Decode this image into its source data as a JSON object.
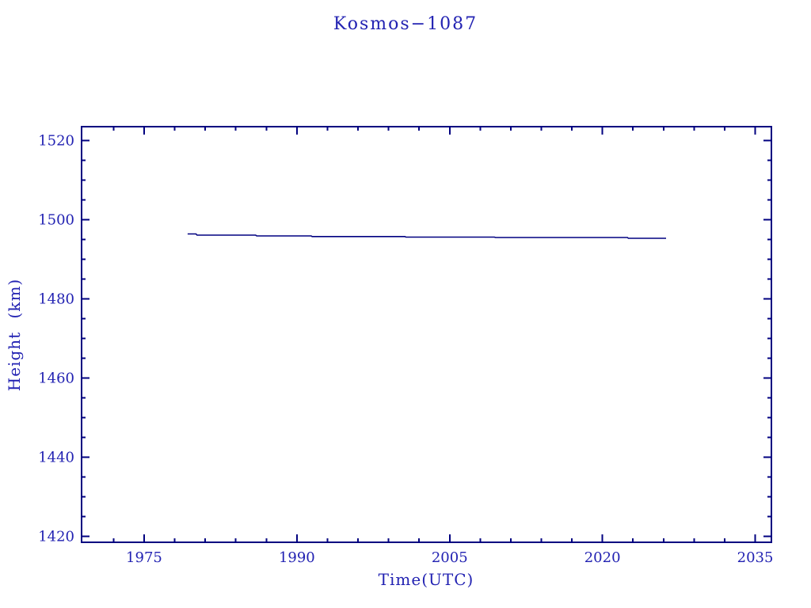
{
  "title": "Kosmos−1087",
  "colors": {
    "background": "#ffffff",
    "axis": "#000080",
    "text": "#2222b2",
    "line": "#000080"
  },
  "chart_data": {
    "type": "line",
    "title": "Kosmos−1087",
    "xlabel": "Time(UTC)",
    "ylabel": "Height (km)",
    "xlim": [
      1968.86,
      2036.59
    ],
    "ylim": [
      1418.5,
      1523.5
    ],
    "x_major_ticks": [
      1975,
      1990,
      2005,
      2020,
      2035
    ],
    "x_minor_interval": 3,
    "y_major_ticks": [
      1420,
      1440,
      1460,
      1480,
      1500,
      1520
    ],
    "y_minor_interval": 5,
    "grid": false,
    "series": [
      {
        "color": "#000080",
        "points": [
          [
            1979.27,
            1496.4
          ],
          [
            1980.1,
            1496.4
          ],
          [
            1980.2,
            1496.1
          ],
          [
            1985.95,
            1496.1
          ],
          [
            1986.05,
            1495.9
          ],
          [
            1991.4,
            1495.9
          ],
          [
            1991.5,
            1495.75
          ],
          [
            2000.6,
            1495.75
          ],
          [
            2000.7,
            1495.6
          ],
          [
            2009.4,
            1495.6
          ],
          [
            2009.5,
            1495.5
          ],
          [
            2022.45,
            1495.5
          ],
          [
            2022.55,
            1495.3
          ],
          [
            2026.25,
            1495.3
          ]
        ]
      }
    ]
  }
}
